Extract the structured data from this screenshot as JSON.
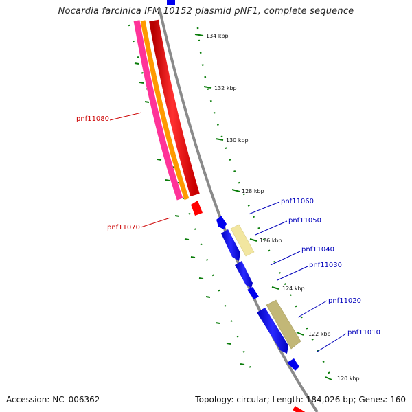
{
  "title": "Nocardia farcinica IFM 10152 plasmid pNF1, complete sequence",
  "footer": {
    "accession": "Accession: NC_006362",
    "summary": "Topology: circular; Length: 184,026 bp; Genes: 160"
  },
  "ticks": [
    {
      "label": "134 kbp"
    },
    {
      "label": "132 kbp"
    },
    {
      "label": "130 kbp"
    },
    {
      "label": "128 kbp"
    },
    {
      "label": "126 kbp"
    },
    {
      "label": "124 kbp"
    },
    {
      "label": "122 kbp"
    },
    {
      "label": "120 kbp"
    }
  ],
  "genes_outer": [
    {
      "name": "pnf11080"
    },
    {
      "name": "pnf11070"
    }
  ],
  "genes_inner": [
    {
      "name": "pnf11060"
    },
    {
      "name": "pnf11050"
    },
    {
      "name": "pnf11040"
    },
    {
      "name": "pnf11030"
    },
    {
      "name": "pnf11020"
    },
    {
      "name": "pnf11010"
    }
  ],
  "colors": {
    "backbone": "#8a8a8a",
    "tick": "#0b7d0b",
    "outer_label": "#cc0000",
    "inner_label": "#0000bb",
    "gene_blue": "#0000ee",
    "gene_red": "#ff0000",
    "gene_orange": "#ff9900",
    "gene_pink": "#ff3399",
    "gene_paleyellow": "#f2e6a0",
    "gene_khaki": "#c2b777"
  }
}
